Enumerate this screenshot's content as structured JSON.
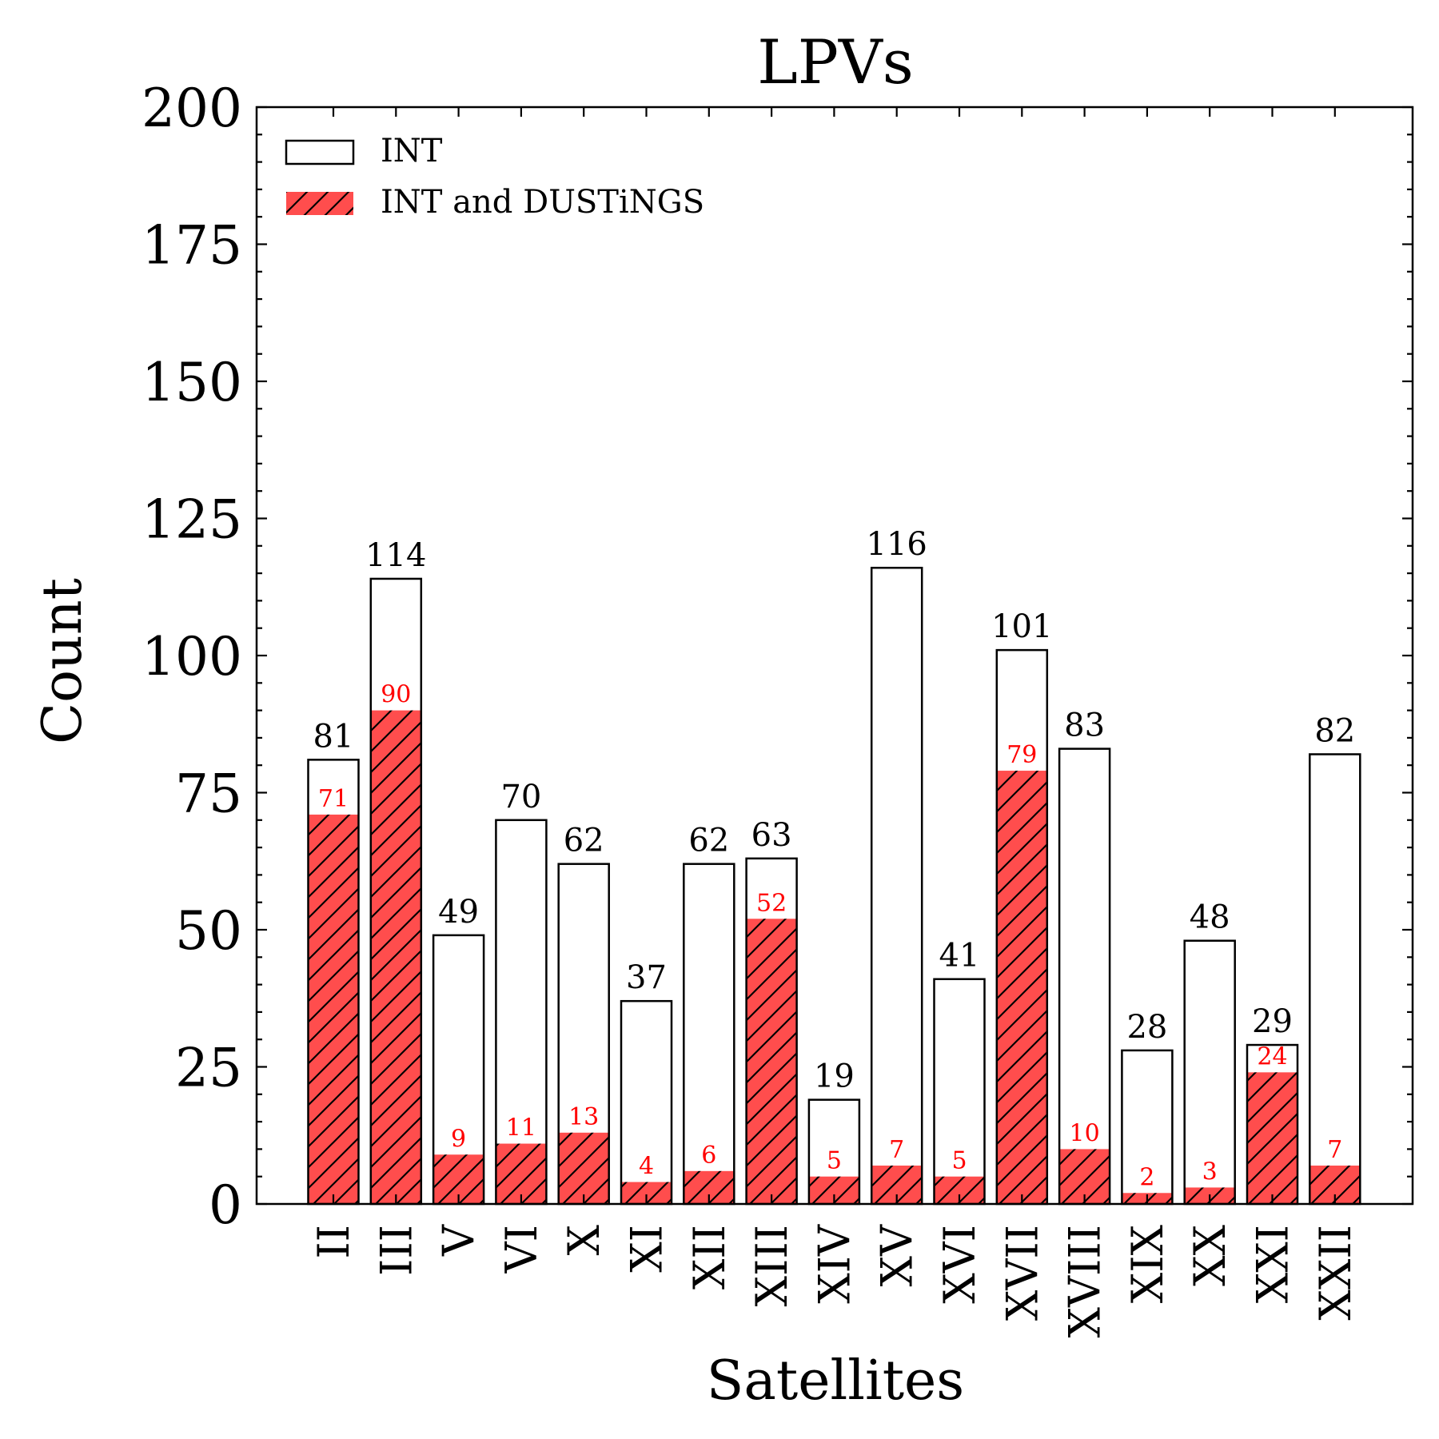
{
  "chart_data": {
    "type": "bar",
    "title": "LPVs",
    "xlabel": "Satellites",
    "ylabel": "Count",
    "ylim": [
      0,
      200
    ],
    "yticks": [
      "0",
      "25",
      "50",
      "75",
      "100",
      "125",
      "150",
      "175",
      "200"
    ],
    "categories": [
      "II",
      "III",
      "V",
      "VI",
      "X",
      "XI",
      "XII",
      "XIII",
      "XIV",
      "XV",
      "XVI",
      "XVII",
      "XVIII",
      "XIX",
      "XX",
      "XXI",
      "XXII"
    ],
    "series": [
      {
        "name": "INT",
        "values": [
          81,
          114,
          49,
          70,
          62,
          37,
          62,
          63,
          19,
          116,
          41,
          101,
          83,
          28,
          48,
          29,
          82
        ],
        "style": "outline",
        "color": "#000000"
      },
      {
        "name": "INT and DUSTiNGS",
        "values": [
          71,
          90,
          9,
          11,
          13,
          4,
          6,
          52,
          5,
          7,
          5,
          79,
          10,
          2,
          3,
          24,
          7
        ],
        "style": "hatched",
        "color": "#ff4d4d"
      }
    ],
    "label_color_int": "#000000",
    "label_color_dustings": "#ff0000",
    "grid": false,
    "legend_position": "top-left"
  }
}
